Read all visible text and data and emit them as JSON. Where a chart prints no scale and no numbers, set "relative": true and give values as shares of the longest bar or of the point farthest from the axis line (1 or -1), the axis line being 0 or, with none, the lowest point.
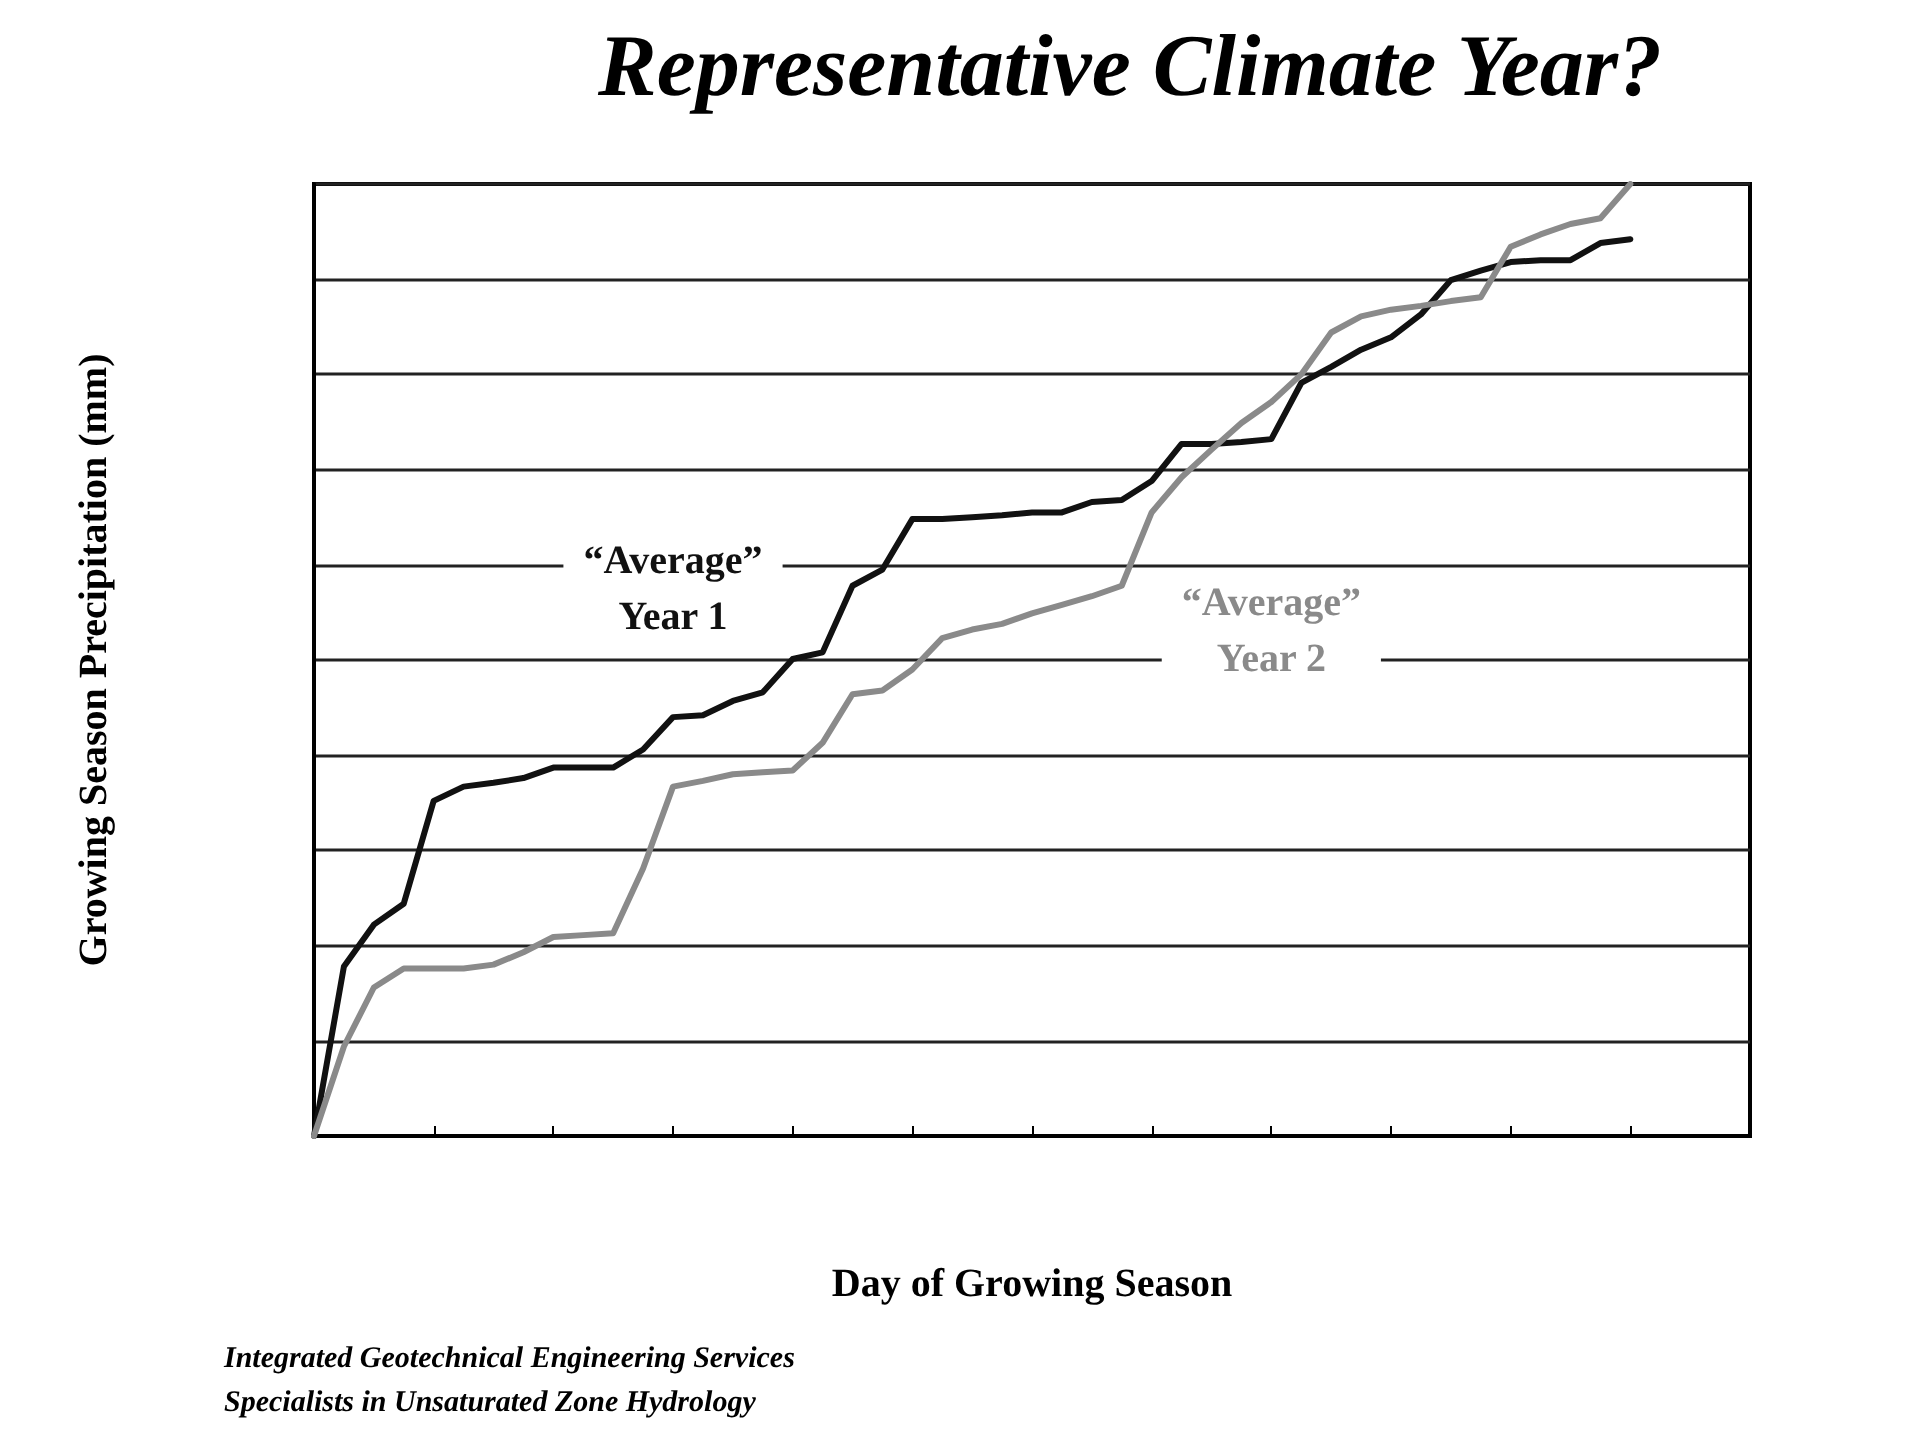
{
  "chart_data": {
    "type": "line",
    "title": "Representative Climate Year?",
    "xlabel": "Day of Growing Season",
    "ylabel": "Growing Season Precipitation (mm)",
    "annotations": [
      "Integrated Geotechnical Engineering Services",
      "Specialists in Unsaturated Zone Hydrology"
    ],
    "relative": true,
    "grid": "y",
    "legend": false,
    "marker": "none",
    "line_style": "solid",
    "categories": [
      null,
      null,
      null,
      null,
      null,
      null,
      null,
      null,
      null,
      null,
      null,
      null,
      null,
      null,
      null,
      null,
      null,
      null,
      null,
      null,
      null,
      null,
      null,
      null,
      null,
      null,
      null,
      null,
      null,
      null,
      null,
      null,
      null,
      null,
      null,
      null,
      null,
      null,
      null,
      null,
      null,
      null,
      null,
      null,
      null,
      null,
      null,
      null,
      null
    ],
    "series": [
      {
        "name": "“Average” Year 1",
        "color": "#111111",
        "values": [
          0,
          0.178,
          0.222,
          0.244,
          0.352,
          0.367,
          0.371,
          0.376,
          0.387,
          0.387,
          0.387,
          0.406,
          0.44,
          0.442,
          0.457,
          0.466,
          0.501,
          0.508,
          0.578,
          0.595,
          0.648,
          0.648,
          0.65,
          0.652,
          0.655,
          0.655,
          0.666,
          0.668,
          0.688,
          0.727,
          0.727,
          0.729,
          0.732,
          0.791,
          0.808,
          0.826,
          0.839,
          0.863,
          0.899,
          0.909,
          0.918,
          0.92,
          0.92,
          0.938,
          0.942,
          null,
          null,
          null,
          null
        ]
      },
      {
        "name": "“Average” Year 2",
        "color": "#8a8a8a",
        "values": [
          0,
          0.094,
          0.156,
          0.176,
          0.176,
          0.176,
          0.18,
          0.193,
          0.209,
          0.211,
          0.213,
          0.281,
          0.367,
          0.373,
          0.38,
          0.382,
          0.384,
          0.413,
          0.464,
          0.468,
          0.49,
          0.523,
          0.532,
          0.538,
          0.549,
          0.558,
          0.567,
          0.578,
          0.655,
          0.692,
          0.721,
          0.749,
          0.771,
          0.8,
          0.844,
          0.861,
          0.868,
          0.872,
          0.877,
          0.881,
          0.934,
          0.947,
          0.958,
          0.964,
          1,
          null,
          null,
          null,
          null
        ]
      }
    ]
  }
}
